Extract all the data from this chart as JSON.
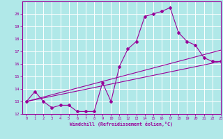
{
  "background_color": "#b0e8e8",
  "grid_color": "#ffffff",
  "line_color": "#990099",
  "marker": "D",
  "marker_size": 2,
  "xlim": [
    -0.5,
    23
  ],
  "ylim": [
    12,
    21
  ],
  "xlabel": "Windchill (Refroidissement éolien,°C)",
  "xlabel_color": "#990099",
  "xticks": [
    0,
    1,
    2,
    3,
    4,
    5,
    6,
    7,
    8,
    9,
    10,
    11,
    12,
    13,
    14,
    15,
    16,
    17,
    18,
    19,
    20,
    21,
    22,
    23
  ],
  "yticks": [
    12,
    13,
    14,
    15,
    16,
    17,
    18,
    19,
    20
  ],
  "line1_x": [
    0,
    1,
    2,
    3,
    4,
    5,
    6,
    7,
    8,
    9,
    10,
    11,
    12,
    13,
    14,
    15,
    16,
    17,
    18,
    19,
    20,
    21,
    22,
    23
  ],
  "line1_y": [
    13.0,
    13.8,
    13.0,
    12.5,
    12.7,
    12.7,
    12.2,
    12.2,
    12.2,
    14.5,
    13.0,
    15.8,
    17.2,
    17.8,
    19.8,
    20.0,
    20.2,
    20.5,
    18.5,
    17.8,
    17.5,
    16.5,
    16.2,
    16.2
  ],
  "line2_x": [
    0,
    23
  ],
  "line2_y": [
    13.0,
    16.2
  ],
  "line3_x": [
    0,
    23
  ],
  "line3_y": [
    13.0,
    17.1
  ]
}
